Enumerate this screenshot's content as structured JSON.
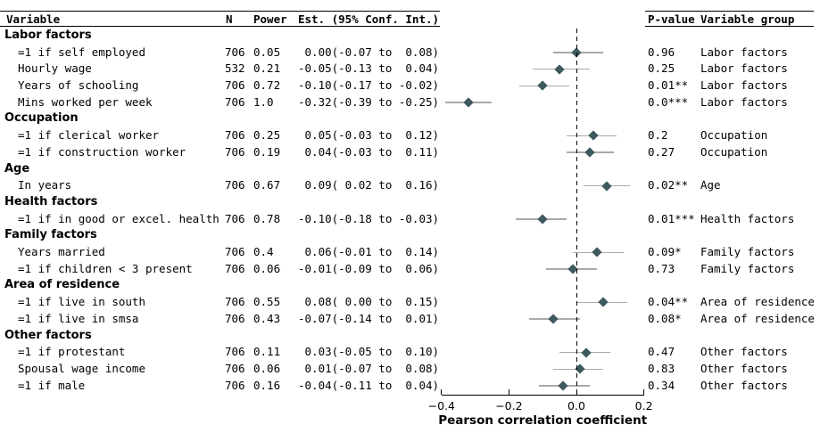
{
  "table": {
    "headers": {
      "variable": "Variable",
      "n": "N",
      "power": "Power",
      "est": "Est. (95% Conf. Int.)",
      "pvalue": "P-value",
      "group": "Variable group"
    },
    "rows": [
      {
        "type": "group",
        "label": "Labor factors"
      },
      {
        "type": "data",
        "label": "=1 if self employed",
        "n": "706",
        "power": "0.05",
        "est_text": " 0.00(-0.07 to  0.08)",
        "est": 0.0,
        "lo": -0.07,
        "hi": 0.08,
        "pvalue": "0.96",
        "group": "Labor factors"
      },
      {
        "type": "data",
        "label": "Hourly wage",
        "n": "532",
        "power": "0.21",
        "est_text": "-0.05(-0.13 to  0.04)",
        "est": -0.05,
        "lo": -0.13,
        "hi": 0.04,
        "pvalue": "0.25",
        "group": "Labor factors"
      },
      {
        "type": "data",
        "label": "Years of schooling",
        "n": "706",
        "power": "0.72",
        "est_text": "-0.10(-0.17 to -0.02)",
        "est": -0.1,
        "lo": -0.17,
        "hi": -0.02,
        "pvalue": "0.01**",
        "group": "Labor factors"
      },
      {
        "type": "data",
        "label": "Mins worked per week",
        "n": "706",
        "power": "1.0",
        "est_text": "-0.32(-0.39 to -0.25)",
        "est": -0.32,
        "lo": -0.39,
        "hi": -0.25,
        "pvalue": "0.0***",
        "group": "Labor factors"
      },
      {
        "type": "group",
        "label": "Occupation"
      },
      {
        "type": "data",
        "label": "=1 if clerical worker",
        "n": "706",
        "power": "0.25",
        "est_text": " 0.05(-0.03 to  0.12)",
        "est": 0.05,
        "lo": -0.03,
        "hi": 0.12,
        "pvalue": "0.2",
        "group": "Occupation"
      },
      {
        "type": "data",
        "label": "=1 if construction worker",
        "n": "706",
        "power": "0.19",
        "est_text": " 0.04(-0.03 to  0.11)",
        "est": 0.04,
        "lo": -0.03,
        "hi": 0.11,
        "pvalue": "0.27",
        "group": "Occupation"
      },
      {
        "type": "group",
        "label": "Age"
      },
      {
        "type": "data",
        "label": "In years",
        "n": "706",
        "power": "0.67",
        "est_text": " 0.09( 0.02 to  0.16)",
        "est": 0.09,
        "lo": 0.02,
        "hi": 0.16,
        "pvalue": "0.02**",
        "group": "Age"
      },
      {
        "type": "group",
        "label": "Health factors"
      },
      {
        "type": "data",
        "label": "=1 if in good or excel. health",
        "n": "706",
        "power": "0.78",
        "est_text": "-0.10(-0.18 to -0.03)",
        "est": -0.1,
        "lo": -0.18,
        "hi": -0.03,
        "pvalue": "0.01***",
        "group": "Health factors"
      },
      {
        "type": "group",
        "label": "Family factors"
      },
      {
        "type": "data",
        "label": "Years married",
        "n": "706",
        "power": "0.4",
        "est_text": " 0.06(-0.01 to  0.14)",
        "est": 0.06,
        "lo": -0.01,
        "hi": 0.14,
        "pvalue": "0.09*",
        "group": "Family factors"
      },
      {
        "type": "data",
        "label": "=1 if children < 3 present",
        "n": "706",
        "power": "0.06",
        "est_text": "-0.01(-0.09 to  0.06)",
        "est": -0.01,
        "lo": -0.09,
        "hi": 0.06,
        "pvalue": "0.73",
        "group": "Family factors"
      },
      {
        "type": "group",
        "label": "Area of residence"
      },
      {
        "type": "data",
        "label": "=1 if live in south",
        "n": "706",
        "power": "0.55",
        "est_text": " 0.08( 0.00 to  0.15)",
        "est": 0.08,
        "lo": 0.0,
        "hi": 0.15,
        "pvalue": "0.04**",
        "group": "Area of residence"
      },
      {
        "type": "data",
        "label": "=1 if live in smsa",
        "n": "706",
        "power": "0.43",
        "est_text": "-0.07(-0.14 to  0.01)",
        "est": -0.07,
        "lo": -0.14,
        "hi": 0.01,
        "pvalue": "0.08*",
        "group": "Area of residence"
      },
      {
        "type": "group",
        "label": "Other factors"
      },
      {
        "type": "data",
        "label": "=1 if protestant",
        "n": "706",
        "power": "0.11",
        "est_text": " 0.03(-0.05 to  0.10)",
        "est": 0.03,
        "lo": -0.05,
        "hi": 0.1,
        "pvalue": "0.47",
        "group": "Other factors"
      },
      {
        "type": "data",
        "label": "Spousal wage income",
        "n": "706",
        "power": "0.06",
        "est_text": " 0.01(-0.07 to  0.08)",
        "est": 0.01,
        "lo": -0.07,
        "hi": 0.08,
        "pvalue": "0.83",
        "group": "Other factors"
      },
      {
        "type": "data",
        "label": "=1 if male",
        "n": "706",
        "power": "0.16",
        "est_text": "-0.04(-0.11 to  0.04)",
        "est": -0.04,
        "lo": -0.11,
        "hi": 0.04,
        "pvalue": "0.34",
        "group": "Other factors"
      }
    ]
  },
  "chart_data": {
    "type": "scatter",
    "subtype": "forest-plot",
    "xlabel": "Pearson correlation coefficient",
    "xlim": [
      -0.4,
      0.2
    ],
    "xticks": [
      -0.4,
      -0.2,
      0,
      0.2
    ],
    "xtick_labels": [
      "−0.4",
      "−0.2",
      "0.0",
      "0.2"
    ],
    "zero_reference_x": 0,
    "grid": false,
    "legend": "none",
    "points": [
      {
        "label": "=1 if self employed",
        "est": 0.0,
        "ci_low": -0.07,
        "ci_high": 0.08
      },
      {
        "label": "Hourly wage",
        "est": -0.05,
        "ci_low": -0.13,
        "ci_high": 0.04
      },
      {
        "label": "Years of schooling",
        "est": -0.1,
        "ci_low": -0.17,
        "ci_high": -0.02
      },
      {
        "label": "Mins worked per week",
        "est": -0.32,
        "ci_low": -0.39,
        "ci_high": -0.25
      },
      {
        "label": "=1 if clerical worker",
        "est": 0.05,
        "ci_low": -0.03,
        "ci_high": 0.12
      },
      {
        "label": "=1 if construction worker",
        "est": 0.04,
        "ci_low": -0.03,
        "ci_high": 0.11
      },
      {
        "label": "In years",
        "est": 0.09,
        "ci_low": 0.02,
        "ci_high": 0.16
      },
      {
        "label": "=1 if in good or excel. health",
        "est": -0.1,
        "ci_low": -0.18,
        "ci_high": -0.03
      },
      {
        "label": "Years married",
        "est": 0.06,
        "ci_low": -0.01,
        "ci_high": 0.14
      },
      {
        "label": "=1 if children < 3 present",
        "est": -0.01,
        "ci_low": -0.09,
        "ci_high": 0.06
      },
      {
        "label": "=1 if live in south",
        "est": 0.08,
        "ci_low": 0.0,
        "ci_high": 0.15
      },
      {
        "label": "=1 if live in smsa",
        "est": -0.07,
        "ci_low": -0.14,
        "ci_high": 0.01
      },
      {
        "label": "=1 if protestant",
        "est": 0.03,
        "ci_low": -0.05,
        "ci_high": 0.1
      },
      {
        "label": "Spousal wage income",
        "est": 0.01,
        "ci_low": -0.07,
        "ci_high": 0.08
      },
      {
        "label": "=1 if male",
        "est": -0.04,
        "ci_low": -0.11,
        "ci_high": 0.04
      }
    ]
  },
  "colors": {
    "marker": "#3e5a5f",
    "ci_line": "#a9a9a9",
    "zero_line": "#000000",
    "axis": "#000000",
    "text": "#000000"
  }
}
